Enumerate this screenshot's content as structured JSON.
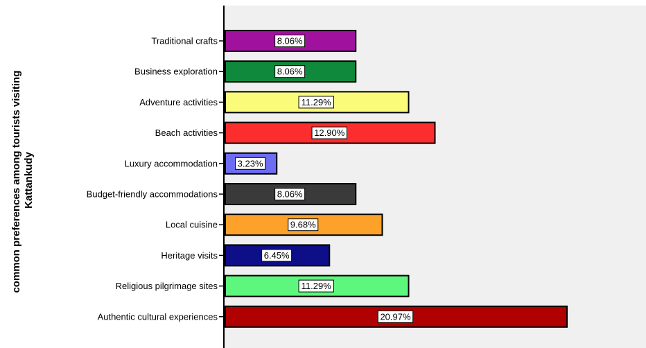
{
  "chart_data": {
    "type": "bar",
    "orientation": "horizontal",
    "ylabel_lines": [
      "common preferences among tourists visiting",
      "Kattankudy"
    ],
    "xlim": [
      0,
      25
    ],
    "grid": false,
    "legend": "none",
    "categories": [
      "Traditional crafts",
      "Business exploration",
      "Adventure activities",
      "Beach activities",
      "Luxury accommodation",
      "Budget-friendly accommodations",
      "Local cuisine",
      "Heritage visits",
      "Religious pilgrimage sites",
      "Authentic cultural experiences"
    ],
    "values": [
      8.06,
      8.06,
      11.29,
      12.9,
      3.23,
      8.06,
      9.68,
      6.45,
      11.29,
      20.97
    ],
    "data_labels": [
      "8.06%",
      "8.06%",
      "11.29%",
      "12.90%",
      "3.23%",
      "8.06%",
      "9.68%",
      "6.45%",
      "11.29%",
      "20.97%"
    ],
    "colors": [
      "#a0129e",
      "#0f8a3c",
      "#fbfb7a",
      "#fb2d2d",
      "#6d6df2",
      "#3a3a3a",
      "#fca12a",
      "#0e0e88",
      "#5cf77c",
      "#b00000"
    ],
    "plot_background": "#f0f0f0"
  }
}
